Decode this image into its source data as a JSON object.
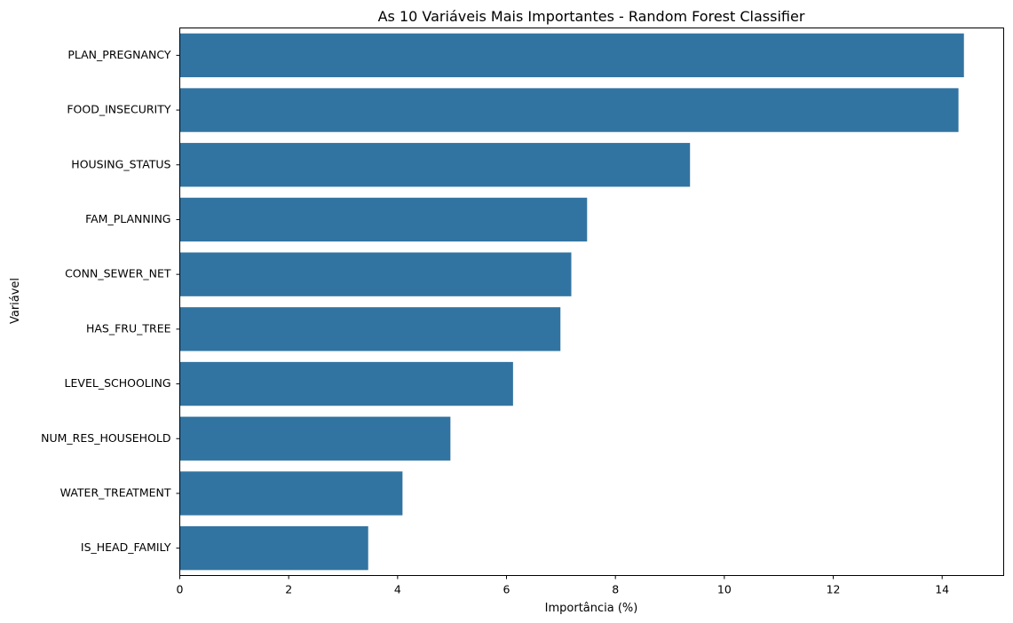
{
  "chart_data": {
    "type": "bar",
    "orientation": "horizontal",
    "title": "As 10 Variáveis Mais Importantes - Random Forest Classifier",
    "xlabel": "Importância (%)",
    "ylabel": "Variável",
    "categories": [
      "PLAN_PREGNANCY",
      "FOOD_INSECURITY",
      "HOUSING_STATUS",
      "FAM_PLANNING",
      "CONN_SEWER_NET",
      "HAS_FRU_TREE",
      "LEVEL_SCHOOLING",
      "NUM_RES_HOUSEHOLD",
      "WATER_TREATMENT",
      "IS_HEAD_FAMILY"
    ],
    "values": [
      14.4,
      14.3,
      9.37,
      7.48,
      7.19,
      6.99,
      6.12,
      4.97,
      4.09,
      3.46
    ],
    "xlim": [
      0,
      15.13
    ],
    "xticks": [
      0,
      2,
      4,
      6,
      8,
      10,
      12,
      14
    ],
    "grid": false,
    "bar_color": "#3274a1"
  }
}
